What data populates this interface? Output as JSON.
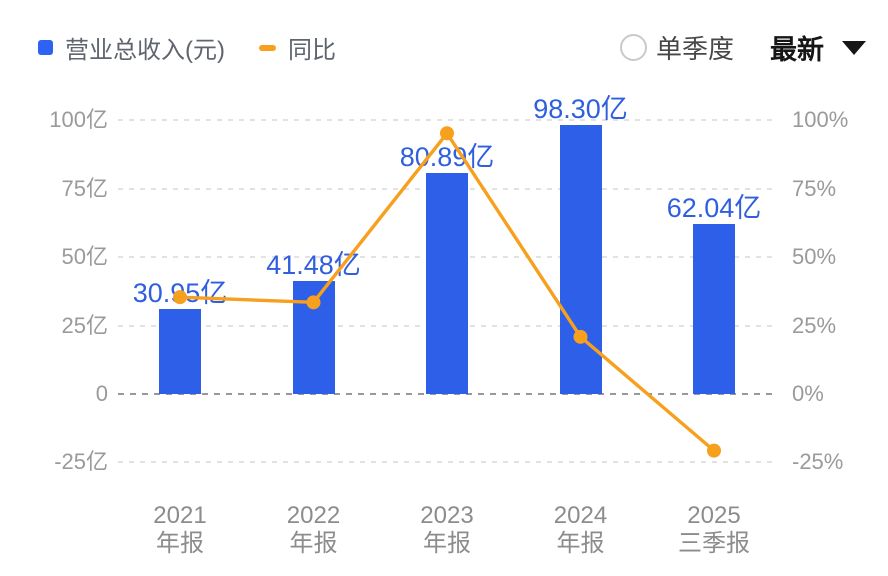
{
  "legend": {
    "revenue_label": "营业总收入(元)",
    "yoy_label": "同比"
  },
  "controls": {
    "single_quarter_label": "单季度",
    "latest_label": "最新"
  },
  "colors": {
    "bar": "#2d5fe8",
    "legend_bar_swatch": "#2e62f2",
    "line": "#f6a01e",
    "value_label": "#2f5fde",
    "grid": "#e2e2e5",
    "zero_grid": "#97979c",
    "axis_text": "#9a9a9a",
    "xaxis_text": "#8c8c8c"
  },
  "chart_data": {
    "type": "combo-bar-line",
    "title": "",
    "categories": [
      "2021 年报",
      "2022 年报",
      "2023 年报",
      "2024 年报",
      "2025 三季报"
    ],
    "categories_lines": [
      [
        "2021",
        "年报"
      ],
      [
        "2022",
        "年报"
      ],
      [
        "2023",
        "年报"
      ],
      [
        "2024",
        "年报"
      ],
      [
        "2025",
        "三季报"
      ]
    ],
    "series": [
      {
        "name": "营业总收入(元)",
        "type": "bar",
        "axis": "left",
        "unit": "亿",
        "values": [
          30.95,
          41.48,
          80.89,
          98.3,
          62.04
        ],
        "labels": [
          "30.95亿",
          "41.48亿",
          "80.89亿",
          "98.30亿",
          "62.04亿"
        ]
      },
      {
        "name": "同比",
        "type": "line",
        "axis": "right",
        "unit": "%",
        "values": [
          35.4,
          33.5,
          95.3,
          20.9,
          -20.7
        ]
      }
    ],
    "left_axis": {
      "ticks": [
        100,
        75,
        50,
        25,
        0,
        -25
      ],
      "tick_labels": [
        "100亿",
        "75亿",
        "50亿",
        "25亿",
        "0",
        "-25亿"
      ],
      "range": [
        -25,
        100
      ]
    },
    "right_axis": {
      "ticks": [
        100,
        75,
        50,
        25,
        0,
        -25
      ],
      "tick_labels": [
        "100%",
        "75%",
        "50%",
        "25%",
        "0%",
        "-25%"
      ],
      "range": [
        -25,
        100
      ]
    },
    "grid": "dashed-horizontal",
    "legend_position": "top-left"
  }
}
